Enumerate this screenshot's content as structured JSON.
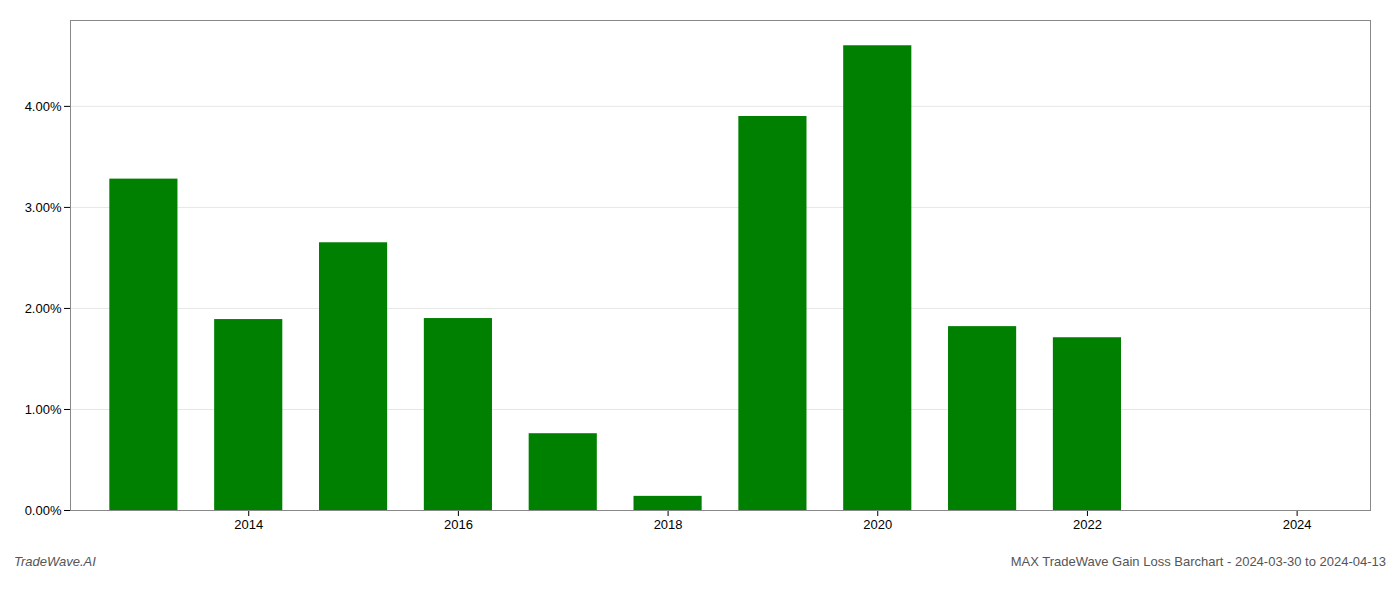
{
  "chart_data": {
    "type": "bar",
    "x": [
      2013,
      2014,
      2015,
      2016,
      2017,
      2018,
      2019,
      2020,
      2021,
      2022,
      2023
    ],
    "values": [
      3.28,
      1.89,
      2.65,
      1.9,
      0.76,
      0.14,
      3.9,
      4.6,
      1.82,
      1.71,
      0.0
    ],
    "color": "#008000",
    "xlim": [
      2012.3,
      2024.7
    ],
    "xticks": [
      2014,
      2016,
      2018,
      2020,
      2022,
      2024
    ],
    "ylim": [
      0,
      4.85
    ],
    "yticks": [
      {
        "value": 0,
        "label": "0.00%"
      },
      {
        "value": 1,
        "label": "1.00%"
      },
      {
        "value": 2,
        "label": "2.00%"
      },
      {
        "value": 3,
        "label": "3.00%"
      },
      {
        "value": 4,
        "label": "4.00%"
      }
    ],
    "grid": true,
    "annotations": [
      "TradeWave.AI",
      "MAX TradeWave Gain Loss Barchart - 2024-03-30 to 2024-04-13"
    ]
  }
}
